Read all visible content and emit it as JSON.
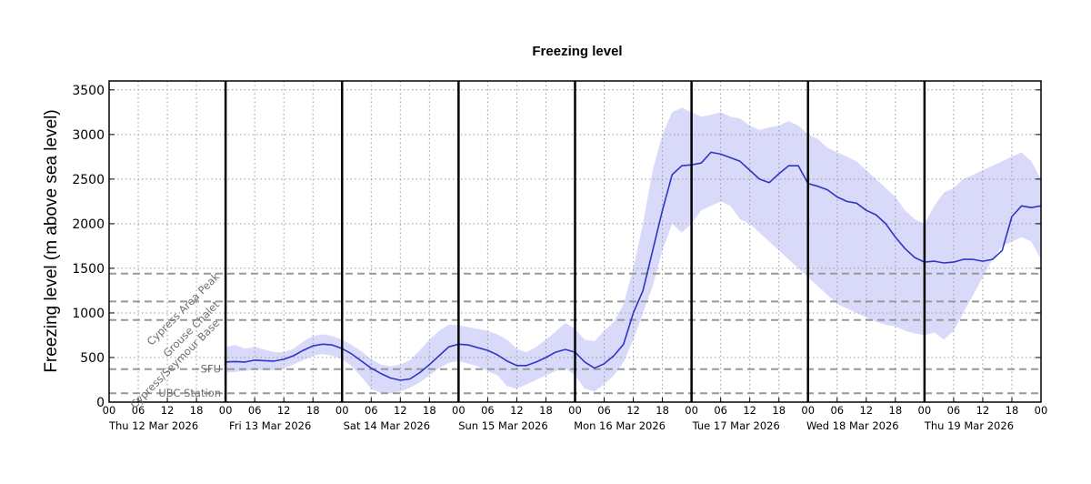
{
  "chart_data": {
    "type": "area",
    "title": "Freezing level",
    "ylabel": "Freezing level (m above sea level)",
    "xlabel": "",
    "ylim": [
      0,
      3600
    ],
    "yticks": [
      0,
      500,
      1000,
      1500,
      2000,
      2500,
      3000,
      3500
    ],
    "xlim_hours": [
      0,
      192
    ],
    "hour_tick_labels": [
      "00",
      "06",
      "12",
      "18"
    ],
    "days": [
      "Thu 12 Mar 2026",
      "Fri 13 Mar 2026",
      "Sat 14 Mar 2026",
      "Sun 15 Mar 2026",
      "Mon 16 Mar 2026",
      "Tue 17 Mar 2026",
      "Wed 18 Mar 2026",
      "Thu 19 Mar 2026"
    ],
    "grid": true,
    "colors": {
      "median": "#2e35c4",
      "band": "#d9dafa",
      "reference": "#999999",
      "day_divider": "#000000"
    },
    "reference_levels": [
      {
        "name": "Cypress Area Peak",
        "value": 1440,
        "rotated": true
      },
      {
        "name": "Grouse Chalet",
        "value": 1128,
        "rotated": true
      },
      {
        "name": "Cypress/Seymour Base",
        "value": 920,
        "rotated": true
      },
      {
        "name": "SFU",
        "value": 370,
        "rotated": false
      },
      {
        "name": "UBC Station",
        "value": 100,
        "rotated": false
      }
    ],
    "series": [
      {
        "type": "line",
        "x": [
          24,
          26,
          28,
          30,
          32,
          34,
          36,
          38,
          40,
          42,
          44,
          46,
          48,
          50,
          52,
          54,
          56,
          58,
          60,
          62,
          64,
          66,
          68,
          70,
          72,
          74,
          76,
          78,
          80,
          82,
          84,
          86,
          88,
          90,
          92,
          94,
          96,
          98,
          100,
          102,
          104,
          106,
          108,
          110,
          112,
          114,
          116,
          118,
          120,
          122,
          124,
          126,
          128,
          130,
          132,
          134,
          136,
          138,
          140,
          142,
          144,
          146,
          148,
          150,
          152,
          154,
          156,
          158,
          160,
          162,
          164,
          166,
          168,
          170,
          172,
          174,
          176,
          178,
          180,
          182,
          184,
          186,
          188,
          190,
          192
        ],
        "y": [
          450,
          455,
          450,
          470,
          465,
          460,
          480,
          520,
          580,
          630,
          650,
          640,
          600,
          540,
          460,
          380,
          320,
          270,
          245,
          260,
          330,
          420,
          520,
          620,
          650,
          640,
          610,
          580,
          530,
          460,
          410,
          410,
          450,
          500,
          560,
          590,
          560,
          450,
          380,
          430,
          520,
          650,
          1000,
          1250,
          1700,
          2150,
          2550,
          2650,
          2660,
          2680,
          2800,
          2780,
          2740,
          2700,
          2600,
          2500,
          2460,
          2560,
          2650,
          2650,
          2450,
          2420,
          2380,
          2300,
          2250,
          2230,
          2150,
          2100,
          2000,
          1850,
          1720,
          1620,
          1570,
          1580,
          1560,
          1570,
          1600,
          1600,
          1580,
          1600,
          1700,
          2080,
          2200,
          2180,
          2200
        ]
      },
      {
        "type": "band",
        "x": [
          24,
          26,
          28,
          30,
          32,
          34,
          36,
          38,
          40,
          42,
          44,
          46,
          48,
          50,
          52,
          54,
          56,
          58,
          60,
          62,
          64,
          66,
          68,
          70,
          72,
          74,
          76,
          78,
          80,
          82,
          84,
          86,
          88,
          90,
          92,
          94,
          96,
          98,
          100,
          102,
          104,
          106,
          108,
          110,
          112,
          114,
          116,
          118,
          120,
          122,
          124,
          126,
          128,
          130,
          132,
          134,
          136,
          138,
          140,
          142,
          144,
          146,
          148,
          150,
          152,
          154,
          156,
          158,
          160,
          162,
          164,
          166,
          168,
          170,
          172,
          174,
          176,
          178,
          180,
          182,
          184,
          186,
          188,
          190,
          192
        ],
        "upper": [
          620,
          640,
          600,
          620,
          590,
          560,
          560,
          600,
          680,
          740,
          760,
          740,
          700,
          640,
          570,
          480,
          420,
          400,
          420,
          470,
          580,
          700,
          800,
          870,
          860,
          840,
          820,
          800,
          760,
          700,
          600,
          560,
          620,
          700,
          790,
          890,
          820,
          700,
          680,
          800,
          900,
          1100,
          1500,
          2000,
          2600,
          3000,
          3250,
          3300,
          3250,
          3200,
          3220,
          3250,
          3200,
          3180,
          3100,
          3050,
          3080,
          3100,
          3150,
          3100,
          3000,
          2950,
          2850,
          2800,
          2750,
          2700,
          2600,
          2500,
          2400,
          2300,
          2150,
          2050,
          2000,
          2200,
          2350,
          2400,
          2500,
          2550,
          2600,
          2650,
          2700,
          2750,
          2800,
          2700,
          2500
        ],
        "lower": [
          330,
          340,
          350,
          360,
          360,
          360,
          380,
          420,
          470,
          520,
          540,
          520,
          480,
          400,
          280,
          150,
          100,
          100,
          120,
          160,
          220,
          300,
          380,
          440,
          460,
          430,
          400,
          350,
          300,
          180,
          150,
          200,
          250,
          300,
          350,
          380,
          300,
          150,
          120,
          200,
          300,
          450,
          700,
          1000,
          1300,
          1700,
          2000,
          1900,
          2000,
          2150,
          2200,
          2250,
          2200,
          2050,
          2000,
          1900,
          1800,
          1700,
          1600,
          1500,
          1400,
          1300,
          1200,
          1100,
          1050,
          1000,
          950,
          900,
          870,
          850,
          800,
          770,
          750,
          780,
          700,
          800,
          1000,
          1200,
          1400,
          1600,
          1750,
          1800,
          1850,
          1800,
          1600
        ]
      }
    ]
  }
}
